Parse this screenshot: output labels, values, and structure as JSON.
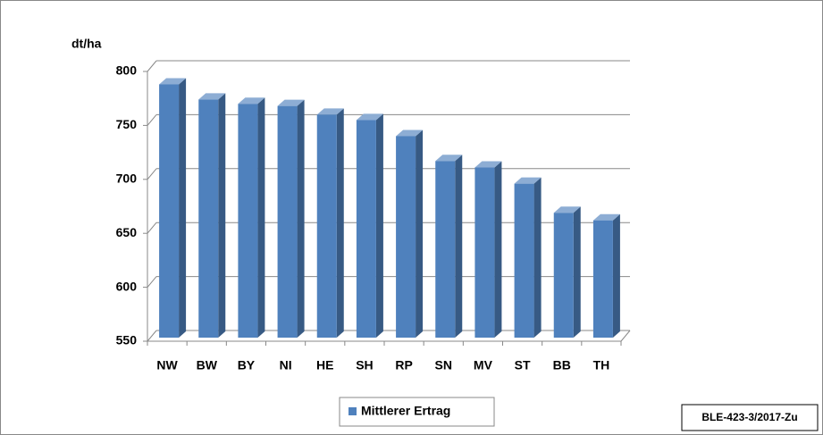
{
  "chart_data": {
    "type": "bar3d",
    "y_label": "dt/ha",
    "categories": [
      "NW",
      "BW",
      "BY",
      "NI",
      "HE",
      "SH",
      "RP",
      "SN",
      "MV",
      "ST",
      "BB",
      "TH"
    ],
    "series": [
      {
        "name": "Mittlerer Ertrag",
        "color": "#4f81bd",
        "values": [
          788,
          774,
          770,
          768,
          760,
          755,
          740,
          717,
          711,
          696,
          669,
          662
        ]
      }
    ],
    "ylim": [
      550,
      800
    ],
    "yticks": [
      550,
      600,
      650,
      700,
      750,
      800
    ],
    "grid": true,
    "legend": "bottom",
    "source": "BLE-423-3/2017-Zu"
  }
}
